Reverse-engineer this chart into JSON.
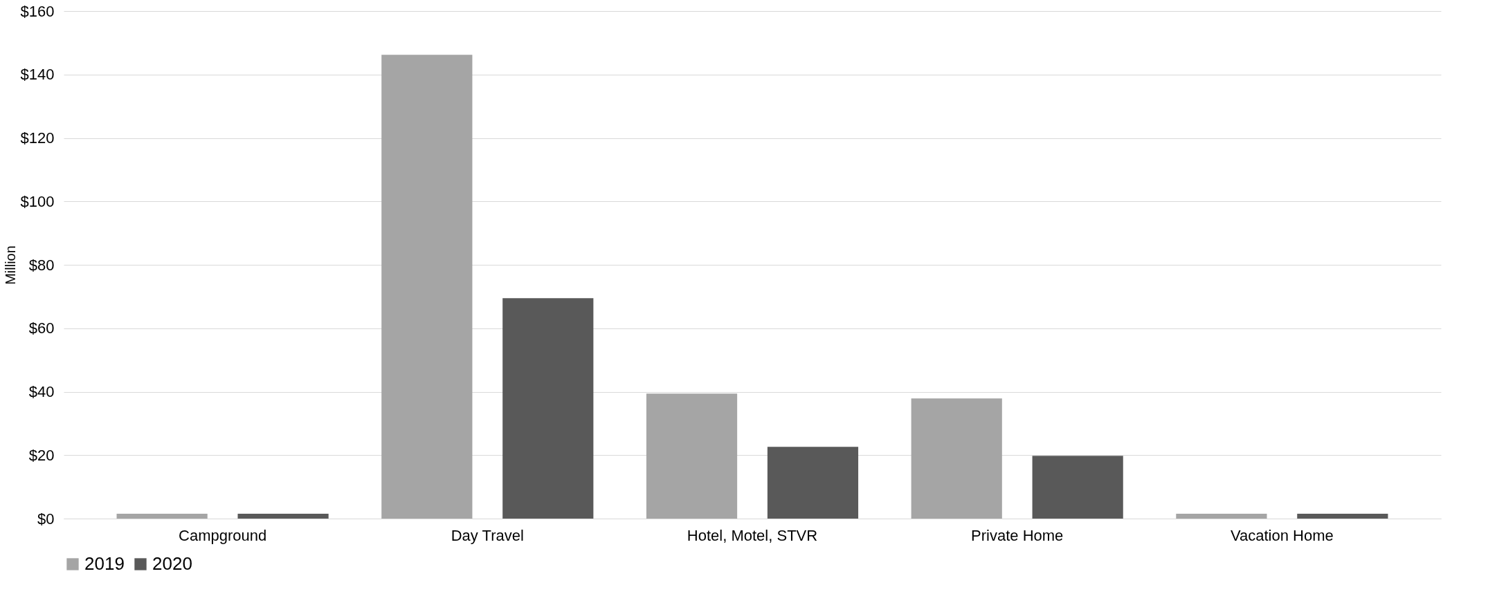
{
  "chart_data": {
    "type": "bar",
    "ylabel": "Million",
    "categories": [
      "Campground",
      "Day Travel",
      "Hotel, Motel, STVR",
      "Private Home",
      "Vacation Home"
    ],
    "series": [
      {
        "name": "2019",
        "color": "#a5a5a5",
        "values": [
          1.5,
          146.2,
          39.4,
          37.9,
          1.5
        ]
      },
      {
        "name": "2020",
        "color": "#595959",
        "values": [
          1.5,
          69.5,
          22.6,
          19.8,
          1.5
        ]
      }
    ],
    "ylim": [
      0,
      160
    ],
    "yticks": [
      {
        "value": 0,
        "label": "$0"
      },
      {
        "value": 20,
        "label": "$20"
      },
      {
        "value": 40,
        "label": "$40"
      },
      {
        "value": 60,
        "label": "$60"
      },
      {
        "value": 80,
        "label": "$80"
      },
      {
        "value": 100,
        "label": "$100"
      },
      {
        "value": 120,
        "label": "$120"
      },
      {
        "value": 140,
        "label": "$140"
      },
      {
        "value": 160,
        "label": "$160"
      }
    ],
    "grid": "y",
    "legend": "bottom"
  }
}
